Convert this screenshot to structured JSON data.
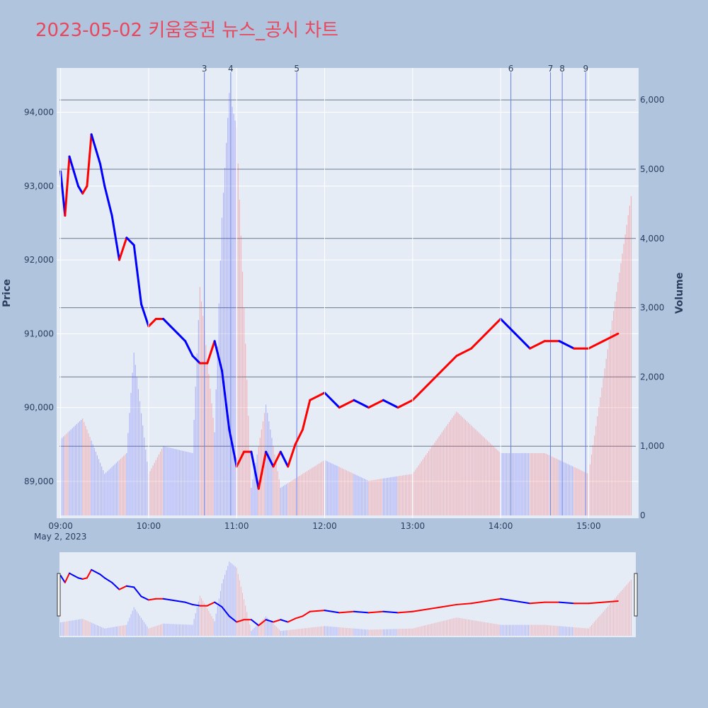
{
  "title": "2023-05-02 키움증권 뉴스_공시 차트",
  "colors": {
    "background": "#b0c4de",
    "plot_bg": "#e5ecf6",
    "up": "#ff0000",
    "down": "#0000ff",
    "title": "#e8485e"
  },
  "chart_data": {
    "type": "line",
    "title": "2023-05-02 키움증권 뉴스_공시 차트",
    "xlabel": "",
    "ylabel": "Price",
    "y2label": "Volume",
    "x_range": [
      "09:00",
      "15:30"
    ],
    "x_ticks": [
      "09:00",
      "10:00",
      "11:00",
      "12:00",
      "13:00",
      "14:00",
      "15:00"
    ],
    "x_date_label": "May 2, 2023",
    "ylim": [
      88500,
      94600
    ],
    "y_ticks": [
      "89,000",
      "90,000",
      "91,000",
      "92,000",
      "93,000",
      "94,000"
    ],
    "y2lim": [
      0,
      6400
    ],
    "y2_ticks": [
      "0",
      "1,000",
      "2,000",
      "3,000",
      "4,000",
      "5,000",
      "6,000"
    ],
    "grid": true,
    "price_series": {
      "name": "",
      "x": [
        "09:00",
        "09:03",
        "09:06",
        "09:09",
        "09:12",
        "09:15",
        "09:18",
        "09:21",
        "09:24",
        "09:27",
        "09:30",
        "09:35",
        "09:40",
        "09:45",
        "09:50",
        "09:55",
        "10:00",
        "10:05",
        "10:10",
        "10:15",
        "10:20",
        "10:25",
        "10:30",
        "10:35",
        "10:40",
        "10:45",
        "10:50",
        "10:55",
        "11:00",
        "11:05",
        "11:10",
        "11:15",
        "11:20",
        "11:25",
        "11:30",
        "11:35",
        "11:40",
        "11:45",
        "11:50",
        "12:00",
        "12:10",
        "12:20",
        "12:30",
        "12:40",
        "12:50",
        "13:00",
        "13:10",
        "13:20",
        "13:30",
        "13:40",
        "13:50",
        "14:00",
        "14:10",
        "14:20",
        "14:30",
        "14:40",
        "14:50",
        "15:00",
        "15:10",
        "15:20"
      ],
      "values": [
        93200,
        92600,
        93400,
        93200,
        93000,
        92900,
        93000,
        93700,
        93500,
        93300,
        93000,
        92600,
        92000,
        92300,
        92200,
        91400,
        91100,
        91200,
        91200,
        91100,
        91000,
        90900,
        90700,
        90600,
        90600,
        90900,
        90500,
        89700,
        89200,
        89400,
        89400,
        88900,
        89400,
        89200,
        89400,
        89200,
        89500,
        89700,
        90100,
        90200,
        90000,
        90100,
        90000,
        90100,
        90000,
        90100,
        90300,
        90500,
        90700,
        90800,
        91000,
        91200,
        91000,
        90800,
        90900,
        90900,
        90800,
        90800,
        90900,
        91000
      ]
    },
    "volume_series": {
      "name": "",
      "x": [
        "09:00",
        "09:15",
        "09:30",
        "09:45",
        "09:50",
        "10:00",
        "10:10",
        "10:30",
        "10:35",
        "10:45",
        "10:50",
        "10:55",
        "11:00",
        "11:10",
        "11:20",
        "11:30",
        "12:00",
        "12:30",
        "13:00",
        "13:30",
        "14:00",
        "14:30",
        "15:00",
        "15:30"
      ],
      "values": [
        1100,
        1400,
        600,
        900,
        2350,
        600,
        1000,
        900,
        3300,
        1200,
        4300,
        6100,
        5600,
        400,
        1600,
        400,
        800,
        500,
        600,
        1500,
        900,
        900,
        600,
        4750
      ]
    },
    "markers": [
      {
        "label": "3",
        "x": "10:38"
      },
      {
        "label": "4",
        "x": "10:56"
      },
      {
        "label": "5",
        "x": "11:41"
      },
      {
        "label": "6",
        "x": "14:07"
      },
      {
        "label": "7",
        "x": "14:34"
      },
      {
        "label": "8",
        "x": "14:42"
      },
      {
        "label": "9",
        "x": "14:58"
      }
    ],
    "rangeslider": true
  }
}
